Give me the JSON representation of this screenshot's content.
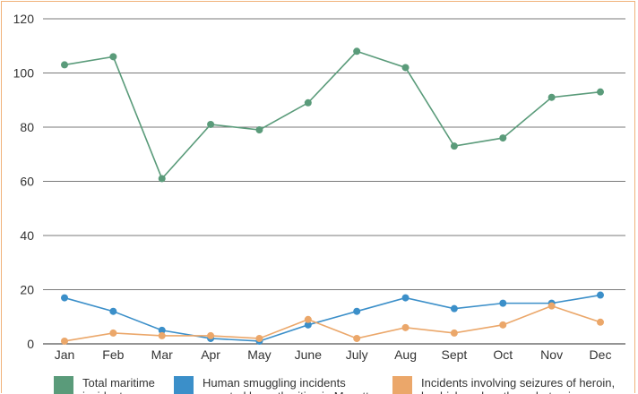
{
  "chart_data": {
    "type": "line",
    "categories": [
      "Jan",
      "Feb",
      "Mar",
      "Apr",
      "May",
      "June",
      "July",
      "Aug",
      "Sept",
      "Oct",
      "Nov",
      "Dec"
    ],
    "ylim": [
      0,
      120
    ],
    "yticks": [
      0,
      20,
      40,
      60,
      80,
      100,
      120
    ],
    "grid": true,
    "legend_position": "bottom",
    "series": [
      {
        "name": "Total maritime incidents",
        "color": "#5a9b7a",
        "values": [
          103,
          106,
          61,
          81,
          79,
          89,
          108,
          102,
          73,
          76,
          91,
          93
        ]
      },
      {
        "name": "Human smuggling incidents reported by authorities in Mayotte",
        "color": "#3b8fc9",
        "values": [
          17,
          12,
          5,
          2,
          1,
          7,
          12,
          17,
          13,
          15,
          15,
          18
        ]
      },
      {
        "name": "Incidents involving seizures of heroin, hashish and methamphetamines",
        "color": "#eba76a",
        "values": [
          1,
          4,
          3,
          3,
          2,
          9,
          2,
          6,
          4,
          7,
          14,
          8
        ]
      }
    ]
  }
}
